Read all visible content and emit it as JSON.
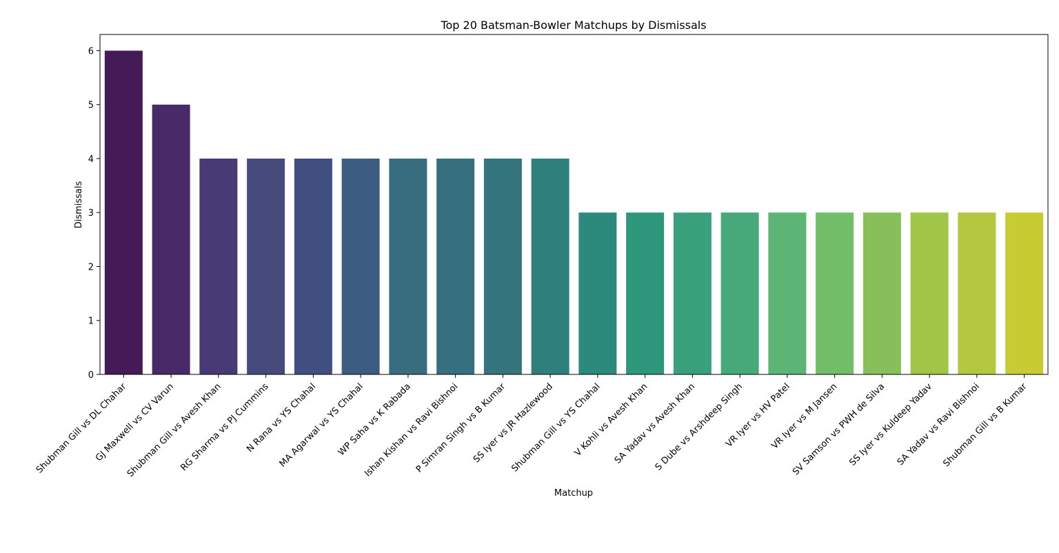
{
  "chart_data": {
    "type": "bar",
    "title": "Top 20 Batsman-Bowler Matchups by Dismissals",
    "xlabel": "Matchup",
    "ylabel": "Dismissals",
    "ylim": [
      0,
      6.3
    ],
    "yticks": [
      0,
      1,
      2,
      3,
      4,
      5,
      6
    ],
    "grid": false,
    "legend": "none",
    "categories": [
      "Shubman Gill vs DL Chahar",
      "GJ Maxwell vs CV Varun",
      "Shubman Gill vs Avesh Khan",
      "RG Sharma vs PJ Cummins",
      "N Rana vs YS Chahal",
      "MA Agarwal vs YS Chahal",
      "WP Saha vs K Rabada",
      "Ishan Kishan vs Ravi Bishnoi",
      "P Simran Singh vs B Kumar",
      "SS Iyer vs JR Hazlewood",
      "Shubman Gill vs YS Chahal",
      "V Kohli vs Avesh Khan",
      "SA Yadav vs Avesh Khan",
      "S Dube vs Arshdeep Singh",
      "VR Iyer vs HV Patel",
      "VR Iyer vs M Jansen",
      "SV Samson vs PWH de Silva",
      "SS Iyer vs Kuldeep Yadav",
      "SA Yadav vs Ravi Bishnoi",
      "Shubman Gill vs B Kumar"
    ],
    "values": [
      6,
      5,
      4,
      4,
      4,
      4,
      4,
      4,
      4,
      4,
      3,
      3,
      3,
      3,
      3,
      3,
      3,
      3,
      3,
      3
    ],
    "colors": [
      "#441b56",
      "#482a67",
      "#483a74",
      "#464a7b",
      "#404e80",
      "#3d5c82",
      "#386d80",
      "#366f80",
      "#34757d",
      "#2f7f7c",
      "#2c8a7c",
      "#2e967a",
      "#39a07c",
      "#47a97a",
      "#5cb574",
      "#71bd68",
      "#87bf5a",
      "#a1c546",
      "#b3c73f",
      "#c9cb32"
    ]
  }
}
